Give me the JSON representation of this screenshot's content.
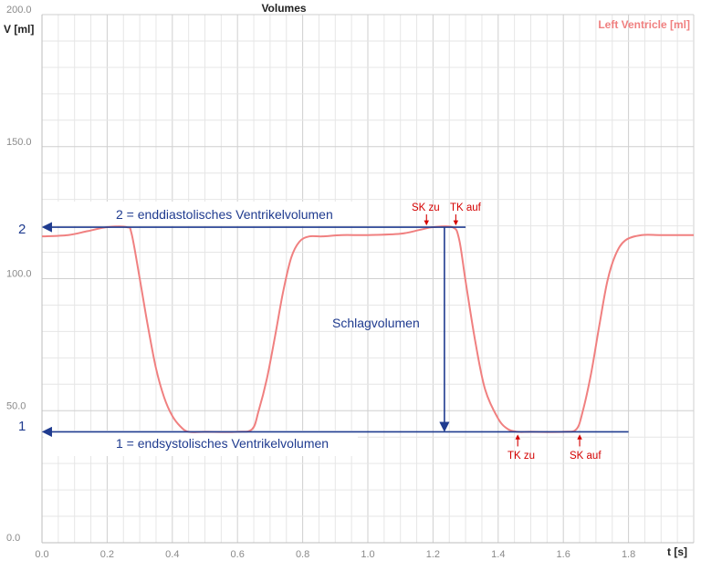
{
  "chart_data": {
    "type": "line",
    "title": "Volumes",
    "ylabel": "V [ml]",
    "xlabel": "t [s]",
    "xlim": [
      0.0,
      2.0
    ],
    "ylim": [
      0.0,
      200.0
    ],
    "x_ticks": [
      "0.0",
      "0.2",
      "0.4",
      "0.6",
      "0.8",
      "1.0",
      "1.2",
      "1.4",
      "1.6",
      "1.8"
    ],
    "y_ticks": [
      "0.0",
      "50.0",
      "100.0",
      "150.0",
      "200.0"
    ],
    "grid": true,
    "colors": {
      "series": "#f08080",
      "annotation": "#1f3b8f",
      "marker": "#d40000"
    },
    "series": [
      {
        "name": "Left Ventricle [ml]",
        "x": [
          0.0,
          0.08,
          0.14,
          0.2,
          0.26,
          0.275,
          0.3,
          0.325,
          0.35,
          0.375,
          0.4,
          0.425,
          0.45,
          0.5,
          0.6,
          0.645,
          0.665,
          0.69,
          0.715,
          0.74,
          0.765,
          0.79,
          0.82,
          0.86,
          0.92,
          1.0,
          1.1,
          1.16,
          1.2,
          1.26,
          1.28,
          1.3,
          1.33,
          1.36,
          1.4,
          1.43,
          1.46,
          1.5,
          1.6,
          1.64,
          1.66,
          1.685,
          1.71,
          1.735,
          1.76,
          1.79,
          1.84,
          1.9,
          2.0
        ],
        "values": [
          116,
          116.5,
          118,
          119.5,
          119.5,
          117,
          100,
          82,
          66,
          55,
          48,
          44,
          42,
          42,
          42,
          43,
          50,
          62,
          78,
          95,
          108,
          114,
          116,
          116,
          116.5,
          116.5,
          117,
          118.5,
          119.5,
          119.5,
          115,
          99,
          76,
          58,
          47,
          43,
          42,
          42,
          42,
          43,
          50,
          64,
          82,
          99,
          109,
          114.5,
          116.5,
          116.5,
          116.5
        ]
      }
    ],
    "annotations": {
      "edv_label": "2 = enddiastolisches Ventrikelvolumen",
      "edv_num": "2",
      "esv_label": "1 = endsystolisches Ventrikelvolumen",
      "esv_num": "1",
      "stroke_label": "Schlagvolumen",
      "sk_zu_1": "SK zu",
      "tk_auf": "TK auf",
      "tk_zu": "TK zu",
      "sk_auf_2": "SK auf",
      "edv_value": 119.5,
      "esv_value": 42,
      "stroke_x": 1.235,
      "edv_line_x_end": 1.3,
      "esv_line_x_end": 1.8,
      "marker_sk_zu_x": 1.18,
      "marker_tk_auf_x": 1.27,
      "marker_tk_zu_x": 1.46,
      "marker_sk_auf_x": 1.65
    }
  }
}
